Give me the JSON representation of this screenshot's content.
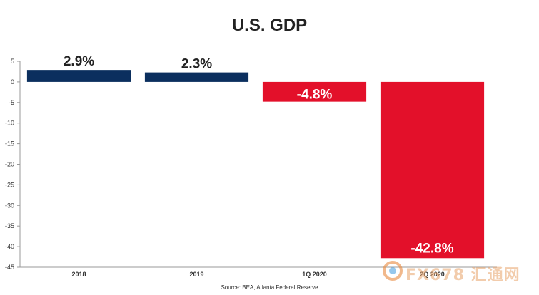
{
  "chart_data": {
    "type": "bar",
    "title": "U.S. GDP",
    "source": "Source: BEA, Atlanta Federal Reserve",
    "categories": [
      "2018",
      "2019",
      "1Q 2020",
      "2Q 2020"
    ],
    "values": [
      2.9,
      2.3,
      -4.8,
      -42.8
    ],
    "data_labels": [
      "2.9%",
      "2.3%",
      "-4.8%",
      "-42.8%"
    ],
    "bar_colors": [
      "#0b2f5e",
      "#0b2f5e",
      "#e3102a",
      "#e3102a"
    ],
    "label_colors": [
      "#222222",
      "#222222",
      "#ffffff",
      "#ffffff"
    ],
    "xlabel": "",
    "ylabel": "",
    "ylim": [
      -45,
      5
    ],
    "yticks": [
      5,
      0,
      -5,
      -10,
      -15,
      -20,
      -25,
      -30,
      -35,
      -40,
      -45
    ],
    "grid": false
  },
  "watermark": {
    "text": "FX678 汇通网"
  }
}
